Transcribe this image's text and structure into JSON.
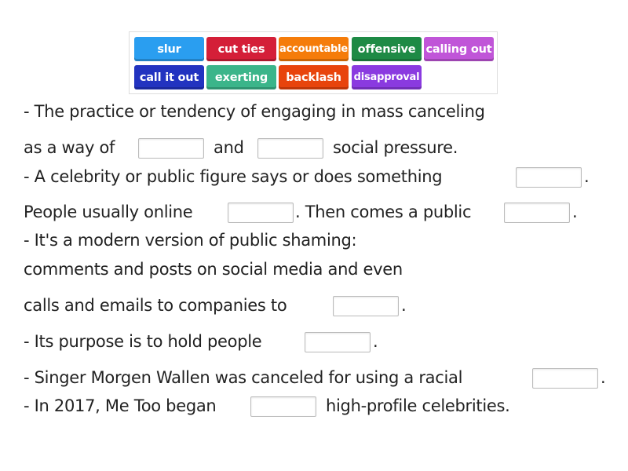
{
  "word_bank": [
    {
      "label": "slur",
      "color": "#2a9ef0"
    },
    {
      "label": "cut ties",
      "color": "#d41f38"
    },
    {
      "label": "accountable",
      "color": "#f57c0a"
    },
    {
      "label": "offensive",
      "color": "#1e8a45"
    },
    {
      "label": "calling out",
      "color": "#c055d8"
    },
    {
      "label": "call it out",
      "color": "#2233c0"
    },
    {
      "label": "exerting",
      "color": "#3bb58a"
    },
    {
      "label": "backlash",
      "color": "#e8440c"
    },
    {
      "label": "disapproval",
      "color": "#8a3ae0"
    }
  ],
  "text": {
    "l1": "- The practice or tendency of engaging in mass canceling",
    "l2a": "as a way of",
    "l2b": "and",
    "l2c": "social pressure.",
    "l3a": "- A celebrity or public figure says or does something",
    "l3b": ".",
    "l4a": "People usually online",
    "l4b": ". Then comes a public",
    "l4c": ".",
    "l5": "- It's a modern version of public shaming:",
    "l6": "comments and posts on social media and even",
    "l7a": "calls and emails to companies to",
    "l7b": ".",
    "l8a": "- Its purpose is to hold people",
    "l8b": ".",
    "l9a": "- Singer Morgen Wallen was canceled for using a racial",
    "l9b": ".",
    "l10a": "- In 2017, Me Too began",
    "l10b": "high-profile celebrities."
  }
}
